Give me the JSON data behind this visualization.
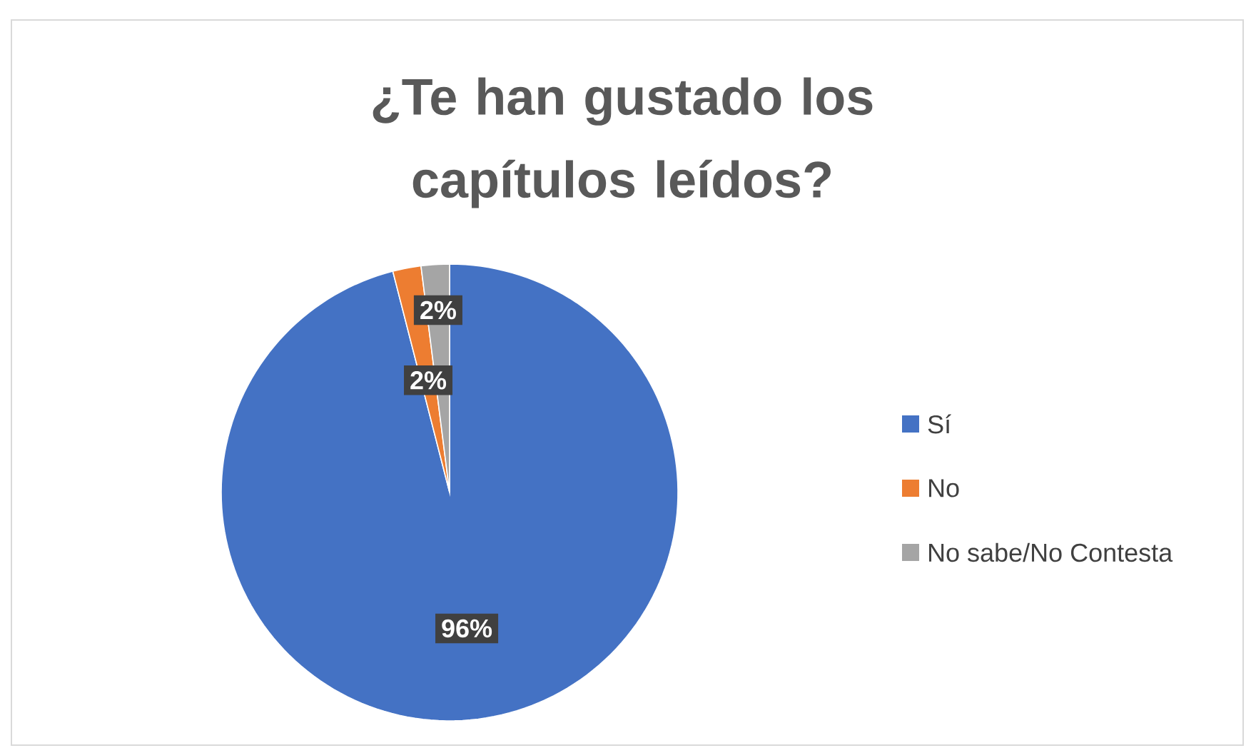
{
  "chart_data": {
    "type": "pie",
    "title": "¿Te han gustado los capítulos leídos?",
    "categories": [
      "Sí",
      "No",
      "No sabe/No Contesta"
    ],
    "values": [
      96,
      2,
      2
    ],
    "value_labels": [
      "96%",
      "2%",
      "2%"
    ],
    "colors": [
      "#4472c4",
      "#ed7d31",
      "#a5a5a5"
    ],
    "legend": "right"
  }
}
